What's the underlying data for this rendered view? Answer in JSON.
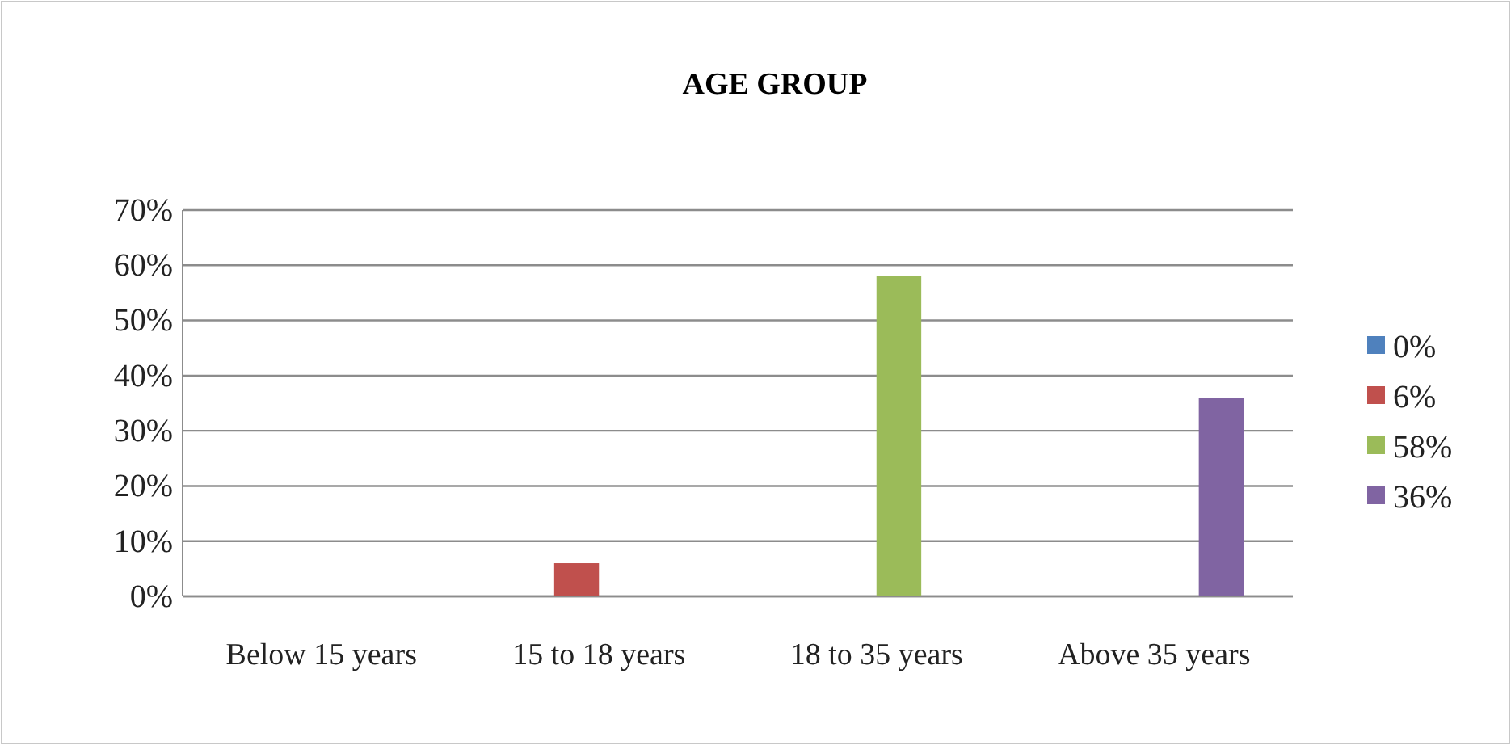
{
  "chart_data": {
    "type": "bar",
    "title": "AGE GROUP",
    "categories": [
      "Below 15 years",
      "15 to 18 years",
      "18 to 35 years",
      "Above 35 years"
    ],
    "series": [
      {
        "name": "0%",
        "color": "#4f81bd",
        "values": [
          0,
          null,
          null,
          null
        ]
      },
      {
        "name": "6%",
        "color": "#c0504d",
        "values": [
          null,
          6,
          null,
          null
        ]
      },
      {
        "name": "58%",
        "color": "#9bbb59",
        "values": [
          null,
          null,
          58,
          null
        ]
      },
      {
        "name": "36%",
        "color": "#8064a2",
        "values": [
          null,
          null,
          null,
          36
        ]
      }
    ],
    "ylim": [
      0,
      70
    ],
    "yticks": [
      {
        "value": 0,
        "label": "0%"
      },
      {
        "value": 10,
        "label": "10%"
      },
      {
        "value": 20,
        "label": "20%"
      },
      {
        "value": 30,
        "label": "30%"
      },
      {
        "value": 40,
        "label": "40%"
      },
      {
        "value": 50,
        "label": "50%"
      },
      {
        "value": 60,
        "label": "60%"
      },
      {
        "value": 70,
        "label": "70%"
      }
    ],
    "grid": "y",
    "legend": "right"
  }
}
